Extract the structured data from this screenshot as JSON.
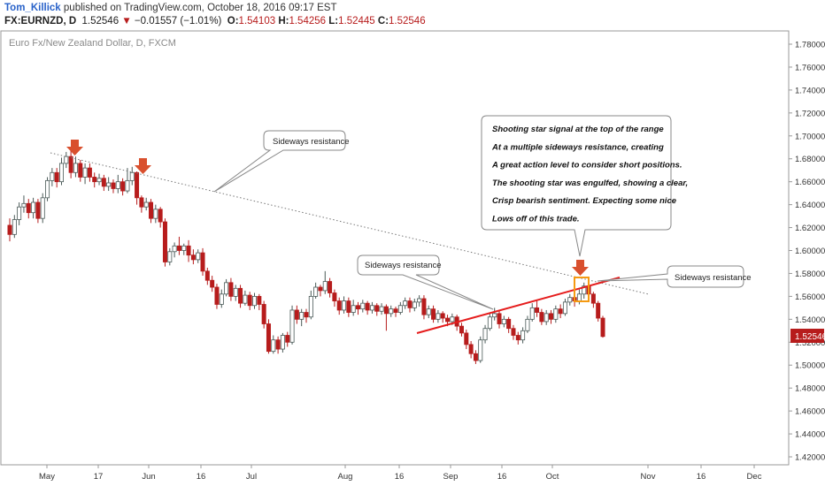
{
  "header": {
    "author": "Tom_Killick",
    "published_text": "published on TradingView.com, October 18, 2016 09:17 EST",
    "symbol": "FX:EURNZD, D",
    "last": "1.52546",
    "change_arrow": "▼",
    "change": "−0.01557 (−1.01%)",
    "open_label": "O:",
    "open": "1.54103",
    "high_label": "H:",
    "high": "1.54256",
    "low_label": "L:",
    "low": "1.52445",
    "close_label": "C:",
    "close": "1.52546"
  },
  "chart_data": {
    "type": "candlestick",
    "title": "Euro Fx/New Zealand Dollar, D, FXCM",
    "ylim": [
      1.41,
      1.79
    ],
    "y_ticks": [
      "1.78000",
      "1.76000",
      "1.74000",
      "1.72000",
      "1.70000",
      "1.68000",
      "1.66000",
      "1.64000",
      "1.62000",
      "1.60000",
      "1.58000",
      "1.56000",
      "1.54000",
      "1.52000",
      "1.50000",
      "1.48000",
      "1.46000",
      "1.44000",
      "1.42000"
    ],
    "x_ticks": [
      "May",
      "17",
      "Jun",
      "16",
      "Jul",
      "Aug",
      "16",
      "Sep",
      "16",
      "Oct",
      "Nov",
      "16",
      "Dec"
    ],
    "last_price_label": "1.52546",
    "candles": [
      [
        1.622,
        1.614,
        1.628,
        1.608
      ],
      [
        1.614,
        1.627,
        1.631,
        1.611
      ],
      [
        1.627,
        1.638,
        1.642,
        1.622
      ],
      [
        1.638,
        1.641,
        1.648,
        1.633
      ],
      [
        1.641,
        1.633,
        1.645,
        1.628
      ],
      [
        1.633,
        1.642,
        1.646,
        1.628
      ],
      [
        1.642,
        1.628,
        1.645,
        1.624
      ],
      [
        1.628,
        1.646,
        1.65,
        1.624
      ],
      [
        1.646,
        1.661,
        1.664,
        1.643
      ],
      [
        1.661,
        1.668,
        1.672,
        1.656
      ],
      [
        1.668,
        1.66,
        1.672,
        1.655
      ],
      [
        1.66,
        1.676,
        1.681,
        1.657
      ],
      [
        1.676,
        1.682,
        1.686,
        1.672
      ],
      [
        1.682,
        1.668,
        1.687,
        1.663
      ],
      [
        1.668,
        1.676,
        1.682,
        1.664
      ],
      [
        1.676,
        1.664,
        1.679,
        1.66
      ],
      [
        1.664,
        1.672,
        1.676,
        1.658
      ],
      [
        1.672,
        1.664,
        1.676,
        1.66
      ],
      [
        1.664,
        1.66,
        1.668,
        1.655
      ],
      [
        1.66,
        1.663,
        1.667,
        1.657
      ],
      [
        1.663,
        1.656,
        1.666,
        1.652
      ],
      [
        1.656,
        1.659,
        1.664,
        1.652
      ],
      [
        1.659,
        1.654,
        1.662,
        1.65
      ],
      [
        1.654,
        1.66,
        1.666,
        1.65
      ],
      [
        1.66,
        1.652,
        1.663,
        1.648
      ],
      [
        1.652,
        1.661,
        1.672,
        1.65
      ],
      [
        1.661,
        1.668,
        1.673,
        1.657
      ],
      [
        1.668,
        1.646,
        1.669,
        1.64
      ],
      [
        1.646,
        1.638,
        1.648,
        1.633
      ],
      [
        1.638,
        1.642,
        1.646,
        1.635
      ],
      [
        1.642,
        1.628,
        1.645,
        1.624
      ],
      [
        1.628,
        1.636,
        1.64,
        1.624
      ],
      [
        1.636,
        1.625,
        1.638,
        1.62
      ],
      [
        1.625,
        1.59,
        1.628,
        1.586
      ],
      [
        1.59,
        1.599,
        1.602,
        1.587
      ],
      [
        1.599,
        1.604,
        1.607,
        1.594
      ],
      [
        1.604,
        1.6,
        1.612,
        1.596
      ],
      [
        1.6,
        1.604,
        1.606,
        1.596
      ],
      [
        1.604,
        1.596,
        1.609,
        1.59
      ],
      [
        1.596,
        1.592,
        1.601,
        1.588
      ],
      [
        1.592,
        1.598,
        1.601,
        1.589
      ],
      [
        1.598,
        1.582,
        1.602,
        1.578
      ],
      [
        1.582,
        1.574,
        1.585,
        1.57
      ],
      [
        1.574,
        1.568,
        1.578,
        1.564
      ],
      [
        1.568,
        1.553,
        1.571,
        1.549
      ],
      [
        1.553,
        1.562,
        1.566,
        1.55
      ],
      [
        1.562,
        1.572,
        1.575,
        1.56
      ],
      [
        1.572,
        1.56,
        1.576,
        1.556
      ],
      [
        1.56,
        1.567,
        1.57,
        1.556
      ],
      [
        1.567,
        1.554,
        1.57,
        1.55
      ],
      [
        1.554,
        1.561,
        1.565,
        1.552
      ],
      [
        1.561,
        1.552,
        1.564,
        1.548
      ],
      [
        1.552,
        1.56,
        1.563,
        1.549
      ],
      [
        1.56,
        1.553,
        1.562,
        1.548
      ],
      [
        1.553,
        1.536,
        1.556,
        1.532
      ],
      [
        1.536,
        1.512,
        1.54,
        1.51
      ],
      [
        1.512,
        1.522,
        1.526,
        1.51
      ],
      [
        1.522,
        1.514,
        1.525,
        1.51
      ],
      [
        1.514,
        1.526,
        1.528,
        1.511
      ],
      [
        1.526,
        1.52,
        1.529,
        1.516
      ],
      [
        1.52,
        1.548,
        1.552,
        1.518
      ],
      [
        1.548,
        1.54,
        1.552,
        1.536
      ],
      [
        1.54,
        1.546,
        1.549,
        1.534
      ],
      [
        1.546,
        1.542,
        1.549,
        1.537
      ],
      [
        1.542,
        1.56,
        1.565,
        1.54
      ],
      [
        1.56,
        1.568,
        1.572,
        1.558
      ],
      [
        1.568,
        1.565,
        1.57,
        1.56
      ],
      [
        1.565,
        1.573,
        1.582,
        1.562
      ],
      [
        1.573,
        1.563,
        1.576,
        1.559
      ],
      [
        1.563,
        1.556,
        1.566,
        1.551
      ],
      [
        1.556,
        1.548,
        1.559,
        1.544
      ],
      [
        1.548,
        1.556,
        1.56,
        1.545
      ],
      [
        1.556,
        1.546,
        1.559,
        1.542
      ],
      [
        1.546,
        1.552,
        1.557,
        1.543
      ],
      [
        1.552,
        1.549,
        1.555,
        1.544
      ],
      [
        1.549,
        1.554,
        1.557,
        1.546
      ],
      [
        1.554,
        1.548,
        1.556,
        1.544
      ],
      [
        1.548,
        1.552,
        1.555,
        1.545
      ],
      [
        1.552,
        1.547,
        1.554,
        1.543
      ],
      [
        1.547,
        1.551,
        1.554,
        1.544
      ],
      [
        1.551,
        1.545,
        1.553,
        1.53
      ],
      [
        1.545,
        1.549,
        1.552,
        1.542
      ],
      [
        1.549,
        1.546,
        1.551,
        1.542
      ],
      [
        1.546,
        1.552,
        1.555,
        1.544
      ],
      [
        1.552,
        1.556,
        1.559,
        1.549
      ],
      [
        1.556,
        1.55,
        1.559,
        1.546
      ],
      [
        1.55,
        1.555,
        1.558,
        1.547
      ],
      [
        1.555,
        1.558,
        1.561,
        1.551
      ],
      [
        1.558,
        1.544,
        1.561,
        1.54
      ],
      [
        1.544,
        1.549,
        1.552,
        1.541
      ],
      [
        1.549,
        1.54,
        1.552,
        1.537
      ],
      [
        1.54,
        1.545,
        1.548,
        1.537
      ],
      [
        1.545,
        1.541,
        1.547,
        1.537
      ],
      [
        1.541,
        1.538,
        1.544,
        1.534
      ],
      [
        1.538,
        1.542,
        1.545,
        1.535
      ],
      [
        1.542,
        1.534,
        1.544,
        1.53
      ],
      [
        1.534,
        1.528,
        1.537,
        1.525
      ],
      [
        1.528,
        1.518,
        1.531,
        1.514
      ],
      [
        1.518,
        1.51,
        1.521,
        1.506
      ],
      [
        1.51,
        1.504,
        1.513,
        1.501
      ],
      [
        1.504,
        1.522,
        1.525,
        1.502
      ],
      [
        1.522,
        1.532,
        1.535,
        1.519
      ],
      [
        1.532,
        1.542,
        1.545,
        1.53
      ],
      [
        1.542,
        1.545,
        1.55,
        1.539
      ],
      [
        1.545,
        1.536,
        1.548,
        1.532
      ],
      [
        1.536,
        1.54,
        1.543,
        1.533
      ],
      [
        1.54,
        1.532,
        1.542,
        1.528
      ],
      [
        1.532,
        1.526,
        1.535,
        1.522
      ],
      [
        1.526,
        1.522,
        1.529,
        1.518
      ],
      [
        1.522,
        1.53,
        1.533,
        1.519
      ],
      [
        1.53,
        1.54,
        1.543,
        1.528
      ],
      [
        1.54,
        1.55,
        1.554,
        1.538
      ],
      [
        1.55,
        1.546,
        1.556,
        1.542
      ],
      [
        1.546,
        1.538,
        1.549,
        1.535
      ],
      [
        1.538,
        1.545,
        1.548,
        1.535
      ],
      [
        1.545,
        1.54,
        1.548,
        1.536
      ],
      [
        1.54,
        1.549,
        1.552,
        1.537
      ],
      [
        1.549,
        1.545,
        1.553,
        1.541
      ],
      [
        1.545,
        1.555,
        1.558,
        1.543
      ],
      [
        1.555,
        1.559,
        1.562,
        1.552
      ],
      [
        1.559,
        1.556,
        1.562,
        1.551
      ],
      [
        1.556,
        1.562,
        1.566,
        1.553
      ],
      [
        1.562,
        1.569,
        1.572,
        1.558
      ],
      [
        1.569,
        1.562,
        1.574,
        1.558
      ],
      [
        1.562,
        1.554,
        1.564,
        1.55
      ],
      [
        1.554,
        1.541,
        1.556,
        1.538
      ],
      [
        1.541,
        1.525,
        1.543,
        1.524
      ]
    ]
  },
  "annotations": {
    "callout_top": "Sideways resistance",
    "callout_mid": "Sideways resistance",
    "callout_right": "Sideways resistance",
    "text_box_lines": [
      "Shooting star signal at the top of the range",
      "At a multiple sideways resistance, creating",
      "A great action level to consider short positions.",
      "The shooting star was engulfed, showing a clear,",
      "Crisp bearish sentiment. Expecting some nice",
      "Lows off of this trade."
    ]
  },
  "colors": {
    "up_candle_fill": "#ffffff",
    "up_candle_border": "#4a5a58",
    "down_candle_fill": "#b71c1c",
    "arrow": "#d9502e",
    "trendline_red": "#e51c1c",
    "highlight_box": "#f59a12",
    "last_price_bg": "#b71c1c"
  }
}
